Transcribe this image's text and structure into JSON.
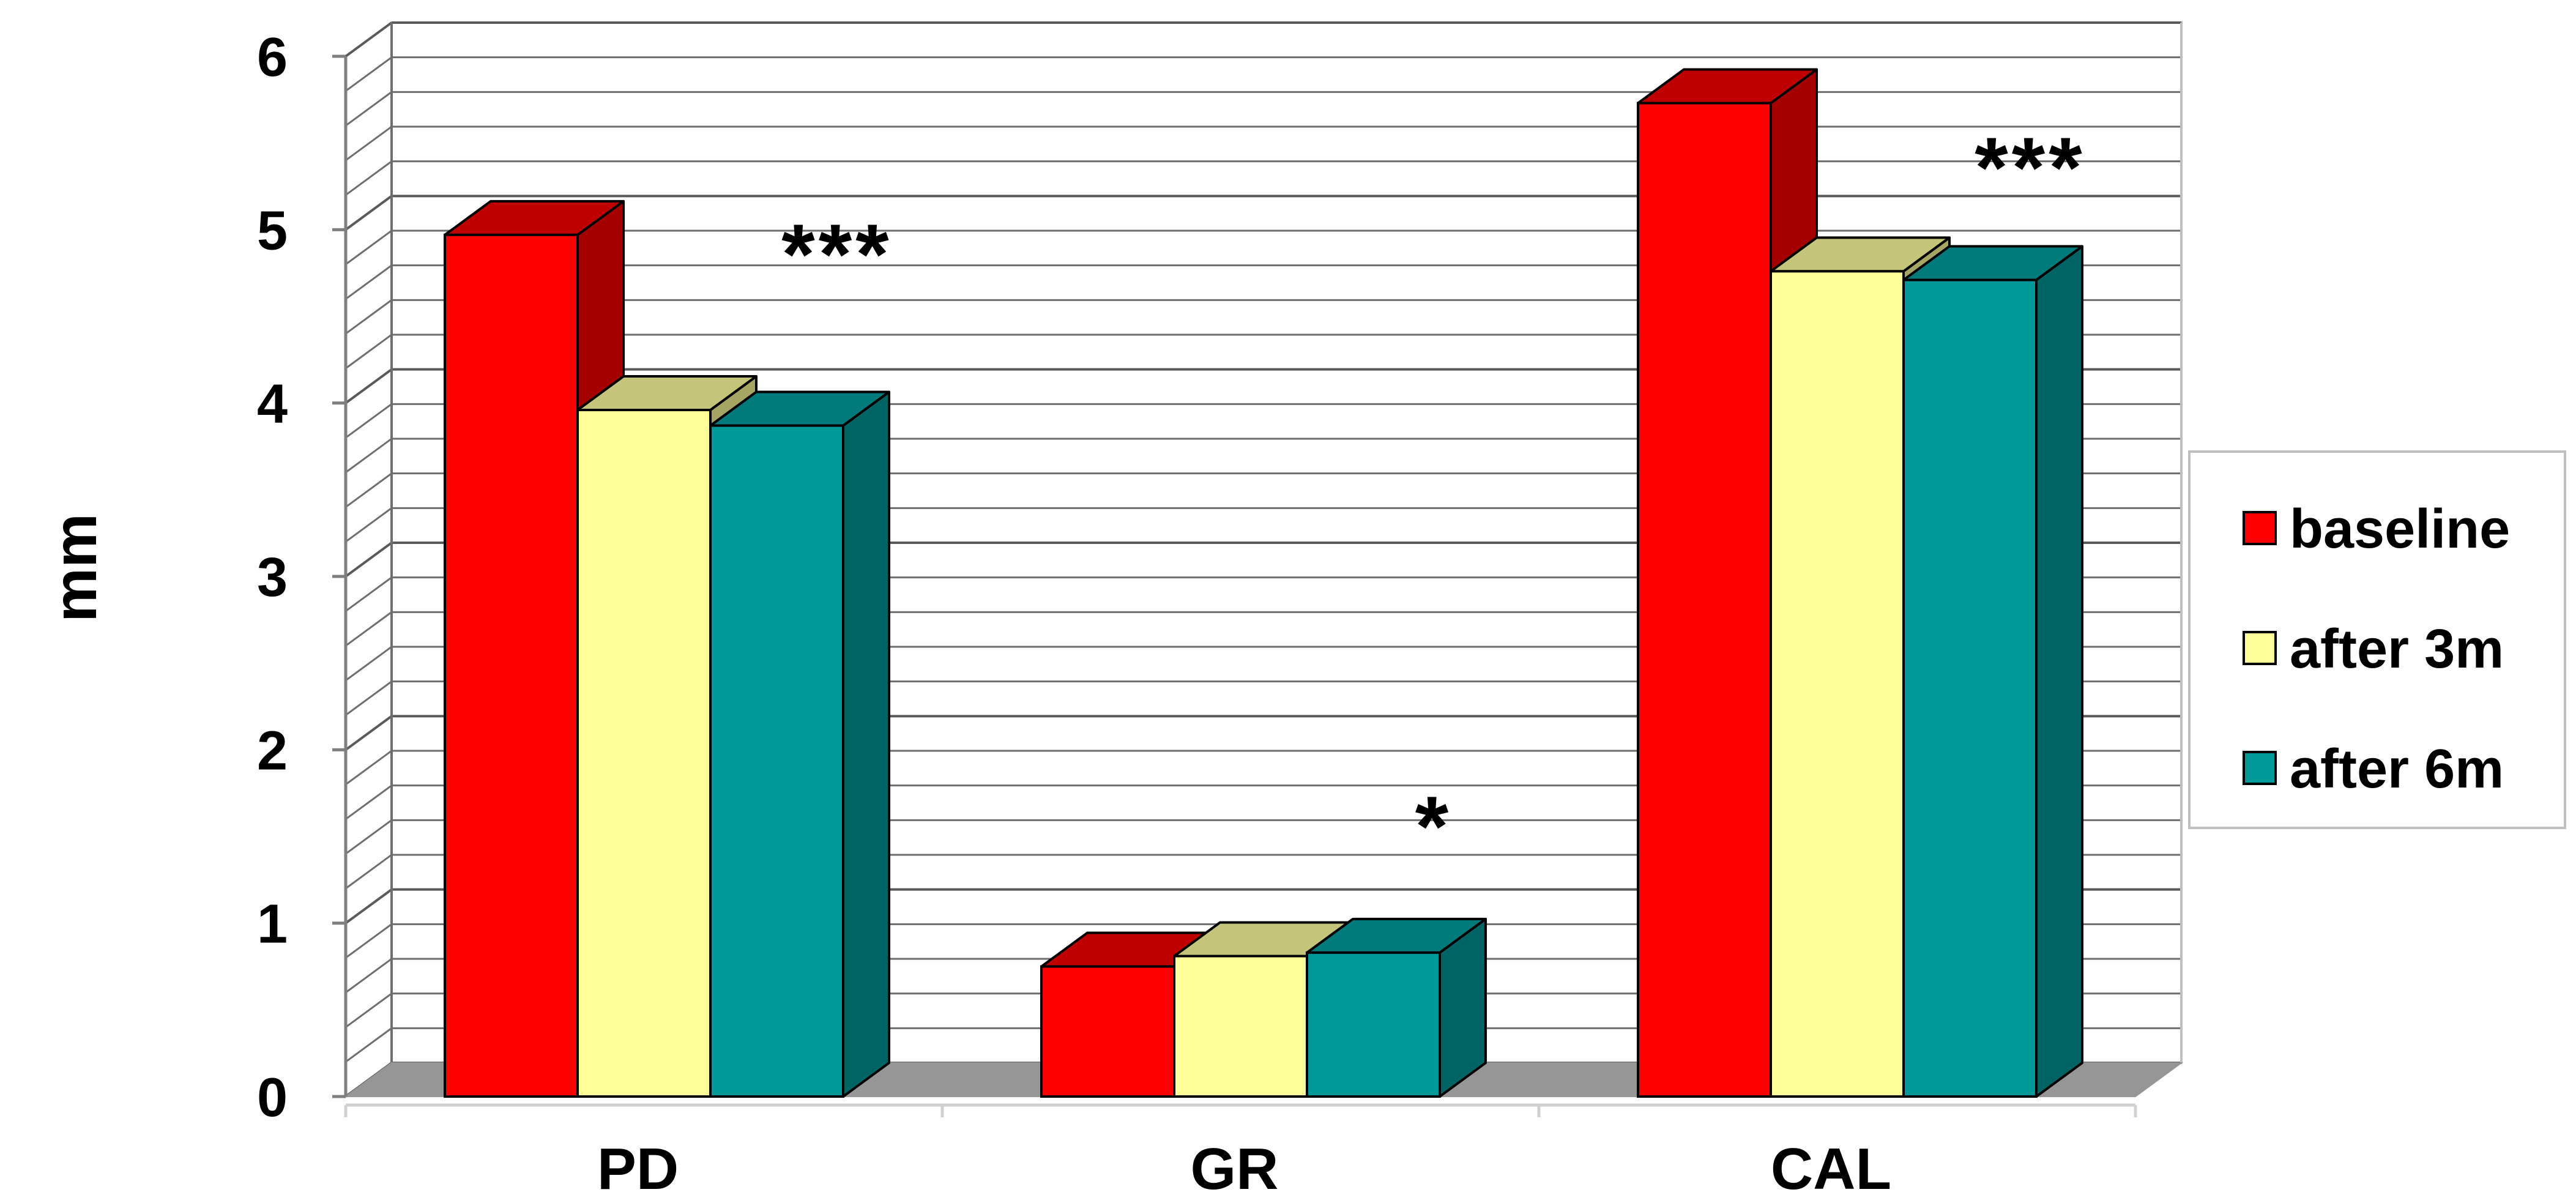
{
  "chart_data": {
    "type": "bar",
    "categories": [
      "PD",
      "GR",
      "CAL"
    ],
    "series": [
      {
        "name": "baseline",
        "values": [
          4.97,
          0.75,
          5.73
        ],
        "color": "#FF0000",
        "side_color": "#A50000",
        "top_color": "#C00000"
      },
      {
        "name": "after 3m",
        "values": [
          3.96,
          0.81,
          4.76
        ],
        "color": "#FFFF99",
        "side_color": "#A6A664",
        "top_color": "#C4C47A"
      },
      {
        "name": "after 6m",
        "values": [
          3.87,
          0.83,
          4.71
        ],
        "color": "#009999",
        "side_color": "#006464",
        "top_color": "#007A7A"
      }
    ],
    "annotations": [
      {
        "text": "***",
        "category": "PD",
        "value": 4.9
      },
      {
        "text": "*",
        "category": "GR",
        "value": 1.6
      },
      {
        "text": "***",
        "category": "CAL",
        "value": 5.4
      }
    ],
    "ylabel": "mm",
    "xlabel": "",
    "title": "",
    "ylim": [
      0,
      6
    ],
    "yticks": [
      0,
      1,
      2,
      3,
      4,
      5,
      6
    ],
    "grid": true,
    "three_d": true,
    "legend_position": "right",
    "floor_color": "#969696"
  }
}
